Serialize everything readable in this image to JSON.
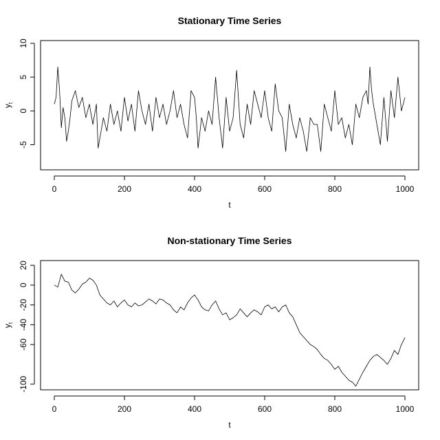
{
  "chart_data": [
    {
      "type": "line",
      "title": "Stationary Time Series",
      "xlabel": "t",
      "ylabel": "y",
      "ylabel_subscript": "t",
      "xlim": [
        0,
        1000
      ],
      "ylim": [
        -8,
        10
      ],
      "xticks": [
        0,
        200,
        400,
        600,
        800,
        1000
      ],
      "yticks": [
        -5,
        0,
        5,
        10
      ],
      "grid": false,
      "series": [
        {
          "x": [
            0,
            5,
            10,
            15,
            20,
            25,
            30,
            35,
            40,
            45,
            50,
            60,
            70,
            80,
            90,
            100,
            110,
            120,
            125,
            130,
            140,
            150,
            160,
            170,
            180,
            190,
            200,
            210,
            220,
            230,
            240,
            250,
            260,
            270,
            280,
            290,
            300,
            310,
            320,
            330,
            340,
            350,
            360,
            370,
            380,
            390,
            400,
            405,
            410,
            420,
            430,
            440,
            450,
            460,
            470,
            480,
            490,
            500,
            510,
            520,
            530,
            540,
            550,
            560,
            570,
            580,
            590,
            600,
            610,
            620,
            630,
            640,
            650,
            660,
            670,
            680,
            690,
            700,
            710,
            720,
            730,
            740,
            750,
            760,
            770,
            780,
            790,
            800,
            810,
            820,
            830,
            840,
            850,
            860,
            870,
            880,
            890,
            895,
            900,
            905,
            910,
            920,
            930,
            940,
            950,
            960,
            970,
            980,
            990,
            1000
          ],
          "y": [
            1,
            2,
            6.5,
            3,
            -2.5,
            0.5,
            -1,
            -4.5,
            -3,
            -1,
            1.5,
            3,
            0.5,
            2,
            -1,
            1,
            -2,
            1,
            -5.5,
            -4,
            -1,
            -3,
            1,
            -2,
            0,
            -3,
            2,
            -1.5,
            1,
            -3,
            3,
            0,
            -2,
            1,
            -3,
            2,
            -1,
            1,
            -2,
            0,
            3,
            -1,
            1,
            -2,
            -4,
            3,
            2,
            -1,
            -5.5,
            -1,
            -3,
            0,
            -2,
            5,
            -1,
            -5.5,
            2,
            -3,
            -1,
            6,
            -2,
            -4,
            1,
            -2,
            3,
            1,
            -1,
            3,
            -1,
            -3,
            4,
            0,
            -1,
            -6,
            1,
            -2,
            -4,
            -1,
            -3,
            -6,
            -1,
            -2,
            -2,
            -6,
            1,
            -1,
            -3,
            3,
            -2,
            -1,
            -4,
            -2,
            -5,
            1,
            -1,
            2,
            3,
            1,
            6.5,
            3,
            1,
            -2,
            -5,
            2,
            -4.5,
            3,
            -1,
            5,
            0,
            2
          ]
        }
      ]
    },
    {
      "type": "line",
      "title": "Non-stationary Time Series",
      "xlabel": "t",
      "ylabel": "y",
      "ylabel_subscript": "t",
      "xlim": [
        0,
        1000
      ],
      "ylim": [
        -105,
        22
      ],
      "xticks": [
        0,
        200,
        400,
        600,
        800,
        1000
      ],
      "yticks": [
        20,
        0,
        -20,
        -40,
        -60,
        -100
      ],
      "grid": false,
      "series": [
        {
          "x": [
            0,
            10,
            20,
            30,
            40,
            50,
            60,
            70,
            80,
            90,
            100,
            110,
            120,
            130,
            140,
            150,
            160,
            170,
            180,
            190,
            200,
            210,
            220,
            230,
            240,
            250,
            260,
            270,
            280,
            290,
            300,
            310,
            320,
            330,
            340,
            350,
            360,
            370,
            380,
            390,
            400,
            410,
            420,
            430,
            440,
            450,
            460,
            470,
            480,
            490,
            500,
            510,
            520,
            530,
            540,
            550,
            560,
            570,
            580,
            590,
            600,
            610,
            620,
            630,
            640,
            650,
            660,
            670,
            680,
            690,
            700,
            710,
            720,
            730,
            740,
            750,
            760,
            770,
            780,
            790,
            800,
            810,
            820,
            830,
            840,
            850,
            860,
            870,
            880,
            890,
            900,
            910,
            920,
            930,
            940,
            950,
            960,
            970,
            980,
            990,
            1000
          ],
          "y": [
            0,
            -2,
            11,
            4,
            3,
            -5,
            -8,
            -4,
            1,
            3,
            7,
            5,
            0,
            -10,
            -14,
            -18,
            -20,
            -16,
            -22,
            -18,
            -15,
            -20,
            -22,
            -18,
            -21,
            -20,
            -17,
            -14,
            -16,
            -19,
            -14,
            -15,
            -18,
            -20,
            -25,
            -28,
            -22,
            -25,
            -18,
            -13,
            -10,
            -15,
            -22,
            -25,
            -26,
            -20,
            -16,
            -24,
            -30,
            -28,
            -35,
            -33,
            -30,
            -24,
            -28,
            -32,
            -28,
            -25,
            -27,
            -30,
            -22,
            -20,
            -24,
            -22,
            -27,
            -22,
            -20,
            -28,
            -32,
            -40,
            -48,
            -52,
            -56,
            -60,
            -62,
            -65,
            -70,
            -74,
            -76,
            -80,
            -85,
            -82,
            -88,
            -92,
            -96,
            -98,
            -102,
            -95,
            -88,
            -82,
            -76,
            -72,
            -70,
            -73,
            -76,
            -80,
            -74,
            -66,
            -70,
            -60,
            -53
          ]
        }
      ]
    }
  ]
}
